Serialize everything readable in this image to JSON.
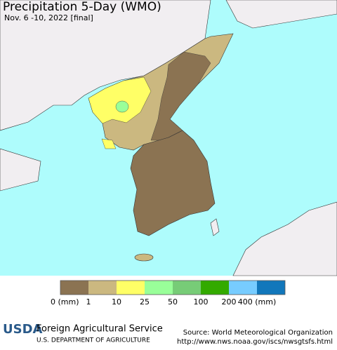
{
  "header": {
    "title": "Precipitation 5-Day (WMO)",
    "subtitle": "Nov. 6 -10, 2022 [final]"
  },
  "legend": {
    "items": [
      {
        "color": "#8b7352",
        "label": "0 (mm)"
      },
      {
        "color": "#cbb880",
        "label": "1"
      },
      {
        "color": "#ffff66",
        "label": "10"
      },
      {
        "color": "#99ff99",
        "label": "25"
      },
      {
        "color": "#77cc77",
        "label": "50"
      },
      {
        "color": "#33aa00",
        "label": "100"
      },
      {
        "color": "#77ccff",
        "label": "200"
      },
      {
        "color": "#1177bb",
        "label": "400 (mm)"
      }
    ]
  },
  "footer": {
    "agency": "Foreign Agricultural Service",
    "department": "U.S. DEPARTMENT OF AGRICULTURE",
    "logo": "USDA",
    "source": "Source: World Meteorological Organization",
    "url": "http://www.nws.noaa.gov/iscs/nwsgtsfs.html"
  }
}
